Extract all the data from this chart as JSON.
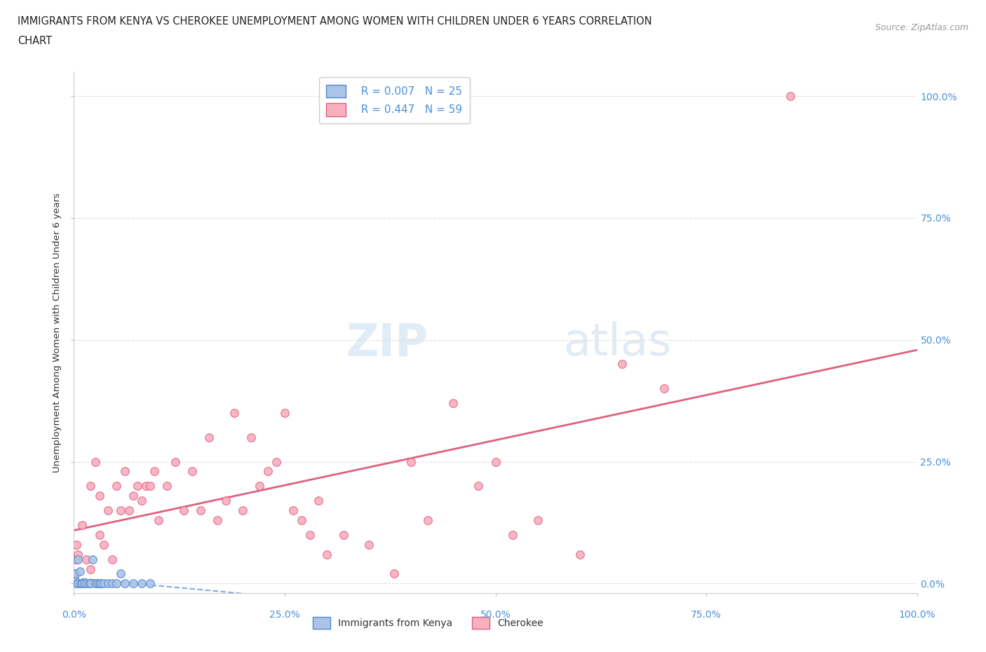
{
  "title_line1": "IMMIGRANTS FROM KENYA VS CHEROKEE UNEMPLOYMENT AMONG WOMEN WITH CHILDREN UNDER 6 YEARS CORRELATION",
  "title_line2": "CHART",
  "source": "Source: ZipAtlas.com",
  "ylabel": "Unemployment Among Women with Children Under 6 years",
  "watermark_zip": "ZIP",
  "watermark_atlas": "atlas",
  "kenya_R": 0.007,
  "kenya_N": 25,
  "cherokee_R": 0.447,
  "cherokee_N": 59,
  "kenya_color": "#aac4e8",
  "cherokee_color": "#f9afc0",
  "kenya_edge_color": "#5588cc",
  "cherokee_edge_color": "#e06080",
  "kenya_line_color": "#88aadd",
  "cherokee_line_color": "#e06080",
  "axis_label_color": "#4a90d9",
  "grid_color": "#e0e0e0",
  "background_color": "#ffffff",
  "kenya_x": [
    0.2,
    0.3,
    0.5,
    0.5,
    0.7,
    0.8,
    1.0,
    1.2,
    1.5,
    1.8,
    2.0,
    2.2,
    2.5,
    2.8,
    3.0,
    3.2,
    3.5,
    4.0,
    4.5,
    5.0,
    5.5,
    6.0,
    7.0,
    8.0,
    9.0
  ],
  "kenya_y": [
    2.0,
    0.0,
    0.0,
    5.0,
    2.5,
    0.0,
    0.0,
    0.0,
    0.0,
    0.0,
    0.0,
    5.0,
    0.0,
    0.0,
    0.0,
    0.0,
    0.0,
    0.0,
    0.0,
    0.0,
    2.0,
    0.0,
    0.0,
    0.0,
    0.0
  ],
  "cherokee_x": [
    0.1,
    0.2,
    0.3,
    0.5,
    1.0,
    1.5,
    2.0,
    2.0,
    2.5,
    3.0,
    3.0,
    3.5,
    4.0,
    4.5,
    5.0,
    5.5,
    6.0,
    6.5,
    7.0,
    7.5,
    8.0,
    8.5,
    9.0,
    9.5,
    10.0,
    11.0,
    12.0,
    13.0,
    14.0,
    15.0,
    16.0,
    17.0,
    18.0,
    19.0,
    20.0,
    21.0,
    22.0,
    23.0,
    24.0,
    25.0,
    26.0,
    27.0,
    28.0,
    29.0,
    30.0,
    32.0,
    35.0,
    38.0,
    40.0,
    42.0,
    45.0,
    48.0,
    50.0,
    52.0,
    55.0,
    60.0,
    65.0,
    70.0,
    85.0
  ],
  "cherokee_y": [
    2.0,
    5.0,
    8.0,
    6.0,
    12.0,
    5.0,
    3.0,
    20.0,
    25.0,
    10.0,
    18.0,
    8.0,
    15.0,
    5.0,
    20.0,
    15.0,
    23.0,
    15.0,
    18.0,
    20.0,
    17.0,
    20.0,
    20.0,
    23.0,
    13.0,
    20.0,
    25.0,
    15.0,
    23.0,
    15.0,
    30.0,
    13.0,
    17.0,
    35.0,
    15.0,
    30.0,
    20.0,
    23.0,
    25.0,
    35.0,
    15.0,
    13.0,
    10.0,
    17.0,
    6.0,
    10.0,
    8.0,
    2.0,
    25.0,
    13.0,
    37.0,
    20.0,
    25.0,
    10.0,
    13.0,
    6.0,
    45.0,
    40.0,
    100.0
  ],
  "yticks": [
    0,
    25,
    50,
    75,
    100
  ],
  "xticks": [
    0,
    25,
    50,
    75,
    100
  ],
  "xlim": [
    0,
    100
  ],
  "ylim": [
    -2,
    105
  ]
}
